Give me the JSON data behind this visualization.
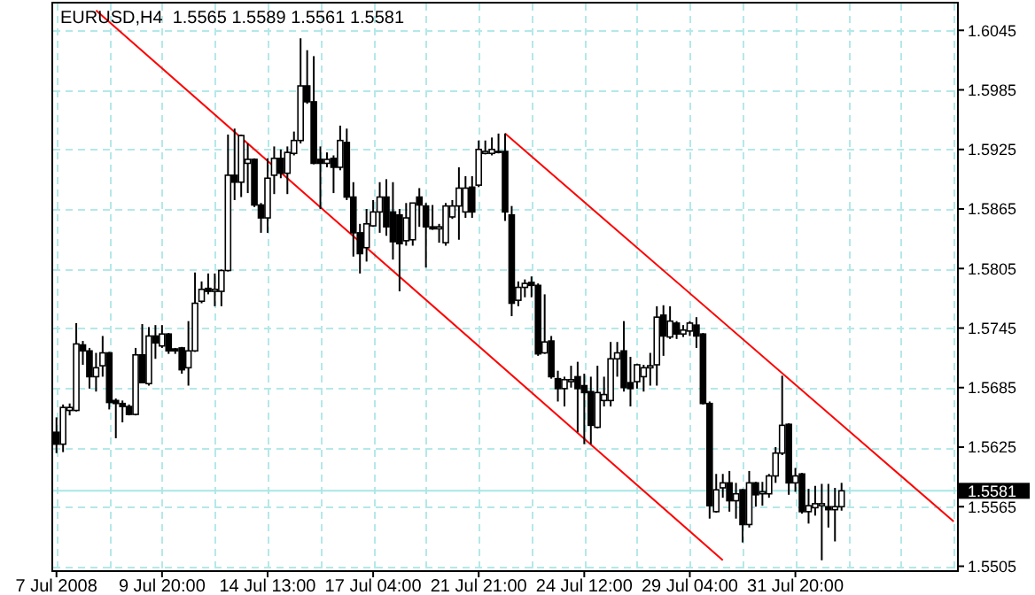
{
  "chart_data": {
    "type": "candlestick",
    "title": "EURUSD,H4  1.5565 1.5589 1.5561 1.5581",
    "categories": [
      "7 Jul 2008",
      null,
      null,
      null,
      null,
      null,
      null,
      null,
      null,
      null,
      null,
      null,
      null,
      null,
      null,
      null,
      "9 Jul 20:00",
      null,
      null,
      null,
      null,
      null,
      null,
      null,
      null,
      null,
      null,
      null,
      null,
      null,
      null,
      null,
      "14 Jul 13:00",
      null,
      null,
      null,
      null,
      null,
      null,
      null,
      null,
      null,
      null,
      null,
      null,
      null,
      null,
      null,
      "17 Jul 04:00",
      null,
      null,
      null,
      null,
      null,
      null,
      null,
      null,
      null,
      null,
      null,
      null,
      null,
      null,
      null,
      "21 Jul 21:00",
      null,
      null,
      null,
      null,
      null,
      null,
      null,
      null,
      null,
      null,
      null,
      null,
      null,
      null,
      null,
      "24 Jul 12:00",
      null,
      null,
      null,
      null,
      null,
      null,
      null,
      null,
      null,
      null,
      null,
      null,
      null,
      null,
      null,
      "29 Jul 04:00",
      null,
      null,
      null,
      null,
      null,
      null,
      null,
      null,
      null,
      null,
      null,
      null,
      null,
      null,
      null,
      "31 Jul 20:00",
      null,
      null,
      null,
      null,
      null,
      null,
      null,
      null,
      null,
      null,
      null,
      null,
      null,
      null,
      null,
      null,
      null,
      null,
      null,
      null,
      null,
      null,
      null,
      null
    ],
    "ohlc": [
      [
        1.564,
        1.5655,
        1.5619,
        1.5628
      ],
      [
        1.5628,
        1.5668,
        1.562,
        1.5665
      ],
      [
        1.5662,
        1.5669,
        1.5657,
        1.5665
      ],
      [
        1.5662,
        1.575,
        1.5661,
        1.5729
      ],
      [
        1.5728,
        1.5732,
        1.5708,
        1.5722
      ],
      [
        1.5722,
        1.5725,
        1.5684,
        1.5696
      ],
      [
        1.5696,
        1.572,
        1.5681,
        1.5705
      ],
      [
        1.5707,
        1.5737,
        1.5696,
        1.572
      ],
      [
        1.572,
        1.5721,
        1.5663,
        1.567
      ],
      [
        1.5672,
        1.5674,
        1.5634,
        1.5669
      ],
      [
        1.5669,
        1.5672,
        1.565,
        1.5666
      ],
      [
        1.5666,
        1.5668,
        1.5657,
        1.5658
      ],
      [
        1.5658,
        1.5725,
        1.5657,
        1.5718
      ],
      [
        1.5718,
        1.5749,
        1.569,
        1.569
      ],
      [
        1.5689,
        1.5746,
        1.5687,
        1.5737
      ],
      [
        1.5737,
        1.5748,
        1.5714,
        1.573
      ],
      [
        1.5727,
        1.5748,
        1.5725,
        1.5739
      ],
      [
        1.5739,
        1.574,
        1.5719,
        1.5722
      ],
      [
        1.5724,
        1.5725,
        1.5719,
        1.5722
      ],
      [
        1.5725,
        1.5726,
        1.5699,
        1.5703
      ],
      [
        1.5705,
        1.5752,
        1.5687,
        1.5722
      ],
      [
        1.5722,
        1.5801,
        1.5721,
        1.577
      ],
      [
        1.5772,
        1.5792,
        1.577,
        1.5784
      ],
      [
        1.5785,
        1.58,
        1.5779,
        1.5782
      ],
      [
        1.5782,
        1.58,
        1.5767,
        1.5784
      ],
      [
        1.5782,
        1.5804,
        1.5767,
        1.5803
      ],
      [
        1.5803,
        1.594,
        1.5802,
        1.5899
      ],
      [
        1.5899,
        1.5946,
        1.5874,
        1.5892
      ],
      [
        1.5892,
        1.594,
        1.5877,
        1.5939
      ],
      [
        1.5911,
        1.5931,
        1.5881,
        1.5915
      ],
      [
        1.5915,
        1.5916,
        1.5867,
        1.5869
      ],
      [
        1.5869,
        1.5871,
        1.5841,
        1.5856
      ],
      [
        1.5856,
        1.5916,
        1.5841,
        1.5896
      ],
      [
        1.5899,
        1.5928,
        1.588,
        1.5916
      ],
      [
        1.5916,
        1.5925,
        1.5896,
        1.5901
      ],
      [
        1.5901,
        1.5928,
        1.588,
        1.5922
      ],
      [
        1.5921,
        1.5943,
        1.5919,
        1.5934
      ],
      [
        1.5934,
        1.6037,
        1.5931,
        1.5989
      ],
      [
        1.5989,
        1.6025,
        1.5971,
        1.5973
      ],
      [
        1.5973,
        1.6019,
        1.591,
        1.5911
      ],
      [
        1.5915,
        1.5928,
        1.5865,
        1.5911
      ],
      [
        1.5911,
        1.5922,
        1.5907,
        1.5915
      ],
      [
        1.5916,
        1.5919,
        1.5881,
        1.5907
      ],
      [
        1.5907,
        1.5949,
        1.5904,
        1.5934
      ],
      [
        1.5932,
        1.5946,
        1.5874,
        1.5877
      ],
      [
        1.5877,
        1.5892,
        1.5817,
        1.5841
      ],
      [
        1.5841,
        1.585,
        1.58,
        1.582
      ],
      [
        1.5826,
        1.5865,
        1.5812,
        1.585
      ],
      [
        1.5848,
        1.5874,
        1.5847,
        1.5862
      ],
      [
        1.5862,
        1.5892,
        1.5841,
        1.5877
      ],
      [
        1.5877,
        1.5895,
        1.5838,
        1.5847
      ],
      [
        1.5862,
        1.5892,
        1.5814,
        1.5832
      ],
      [
        1.5859,
        1.5865,
        1.5782,
        1.583
      ],
      [
        1.5833,
        1.5871,
        1.5828,
        1.5856
      ],
      [
        1.5834,
        1.5871,
        1.5828,
        1.5871
      ],
      [
        1.5877,
        1.5886,
        1.5847,
        1.5869
      ],
      [
        1.5868,
        1.5871,
        1.5806,
        1.5847
      ],
      [
        1.5847,
        1.5869,
        1.5844,
        1.5845
      ],
      [
        1.5845,
        1.585,
        1.5831,
        1.5847
      ],
      [
        1.5831,
        1.5871,
        1.5828,
        1.5868
      ],
      [
        1.5857,
        1.5874,
        1.5855,
        1.5868
      ],
      [
        1.5868,
        1.5907,
        1.5834,
        1.5886
      ],
      [
        1.5862,
        1.5898,
        1.5856,
        1.5886
      ],
      [
        1.5887,
        1.5898,
        1.5856,
        1.5862
      ],
      [
        1.5889,
        1.5934,
        1.5887,
        1.5925
      ],
      [
        1.5921,
        1.5934,
        1.592,
        1.5923
      ],
      [
        1.5921,
        1.5937,
        1.5919,
        1.5925
      ],
      [
        1.5923,
        1.5941,
        1.5921,
        1.5922
      ],
      [
        1.5923,
        1.5941,
        1.5853,
        1.5862
      ],
      [
        1.5859,
        1.5868,
        1.5757,
        1.577
      ],
      [
        1.5773,
        1.5792,
        1.5767,
        1.5786
      ],
      [
        1.5786,
        1.5794,
        1.5776,
        1.579
      ],
      [
        1.5791,
        1.5797,
        1.5776,
        1.5788
      ],
      [
        1.5788,
        1.579,
        1.5717,
        1.5719
      ],
      [
        1.572,
        1.5779,
        1.5719,
        1.5731
      ],
      [
        1.5732,
        1.5737,
        1.5694,
        1.5696
      ],
      [
        1.5694,
        1.5702,
        1.5671,
        1.5684
      ],
      [
        1.5684,
        1.5696,
        1.5666,
        1.5693
      ],
      [
        1.5691,
        1.5707,
        1.5685,
        1.5693
      ],
      [
        1.5696,
        1.5711,
        1.564,
        1.5684
      ],
      [
        1.5687,
        1.5699,
        1.5628,
        1.568
      ],
      [
        1.5681,
        1.5696,
        1.5628,
        1.5647
      ],
      [
        1.5645,
        1.5707,
        1.5644,
        1.568
      ],
      [
        1.5672,
        1.5696,
        1.5666,
        1.5678
      ],
      [
        1.5672,
        1.5731,
        1.5666,
        1.5714
      ],
      [
        1.5714,
        1.5731,
        1.5696,
        1.572
      ],
      [
        1.5722,
        1.5752,
        1.5681,
        1.5685
      ],
      [
        1.569,
        1.5716,
        1.5666,
        1.5684
      ],
      [
        1.5691,
        1.5709,
        1.5684,
        1.5708
      ],
      [
        1.5696,
        1.5708,
        1.5681,
        1.5705
      ],
      [
        1.5705,
        1.572,
        1.5687,
        1.5707
      ],
      [
        1.5708,
        1.5767,
        1.5687,
        1.5756
      ],
      [
        1.5758,
        1.5768,
        1.5717,
        1.5737
      ],
      [
        1.5736,
        1.5767,
        1.5734,
        1.5752
      ],
      [
        1.575,
        1.5752,
        1.5734,
        1.5739
      ],
      [
        1.5739,
        1.5748,
        1.5736,
        1.5743
      ],
      [
        1.5742,
        1.5752,
        1.5737,
        1.575
      ],
      [
        1.5748,
        1.5756,
        1.5725,
        1.5737
      ],
      [
        1.5739,
        1.574,
        1.5668,
        1.5669
      ],
      [
        1.5669,
        1.5671,
        1.5553,
        1.5566
      ],
      [
        1.556,
        1.5598,
        1.5559,
        1.5582
      ],
      [
        1.5584,
        1.5598,
        1.5574,
        1.5589
      ],
      [
        1.5589,
        1.5601,
        1.556,
        1.5571
      ],
      [
        1.5571,
        1.5589,
        1.5553,
        1.5578
      ],
      [
        1.5582,
        1.5583,
        1.5529,
        1.5547
      ],
      [
        1.5547,
        1.5601,
        1.5544,
        1.5589
      ],
      [
        1.5589,
        1.559,
        1.5565,
        1.5577
      ],
      [
        1.5578,
        1.559,
        1.5566,
        1.558
      ],
      [
        1.5578,
        1.5598,
        1.5574,
        1.5596
      ],
      [
        1.5596,
        1.5625,
        1.5589,
        1.5619
      ],
      [
        1.5619,
        1.5697,
        1.5617,
        1.5647
      ],
      [
        1.5648,
        1.5649,
        1.5577,
        1.5589
      ],
      [
        1.5589,
        1.5604,
        1.558,
        1.5596
      ],
      [
        1.5598,
        1.5599,
        1.5558,
        1.556
      ],
      [
        1.556,
        1.5583,
        1.5548,
        1.5566
      ],
      [
        1.5564,
        1.5586,
        1.5556,
        1.5568
      ],
      [
        1.5566,
        1.5588,
        1.5511,
        1.5568
      ],
      [
        1.5565,
        1.5588,
        1.5544,
        1.5562
      ],
      [
        1.5562,
        1.5584,
        1.553,
        1.5565
      ],
      [
        1.5565,
        1.5589,
        1.5561,
        1.5581
      ],
      null,
      null,
      null,
      null,
      null,
      null,
      null,
      null,
      null,
      null,
      null,
      null,
      null,
      null,
      null,
      null,
      null
    ],
    "series": [
      {
        "type": "line",
        "color": "#ff0000",
        "values": [
          null,
          null,
          null,
          null,
          null,
          null,
          1.6065,
          null,
          null,
          null,
          null,
          null,
          null,
          null,
          null,
          null,
          null,
          null,
          null,
          null,
          null,
          null,
          null,
          null,
          null,
          null,
          null,
          null,
          null,
          null,
          null,
          null,
          null,
          null,
          null,
          null,
          null,
          null,
          null,
          null,
          null,
          null,
          null,
          null,
          null,
          null,
          null,
          null,
          null,
          null,
          null,
          null,
          null,
          null,
          null,
          null,
          null,
          null,
          null,
          null,
          null,
          null,
          null,
          null,
          null,
          null,
          null,
          null,
          null,
          null,
          null,
          null,
          null,
          null,
          null,
          null,
          null,
          null,
          null,
          null,
          null,
          null,
          null,
          null,
          null,
          null,
          null,
          null,
          null,
          null,
          null,
          null,
          null,
          null,
          null,
          null,
          null,
          null,
          null,
          null,
          null,
          1.5511,
          null,
          null,
          null,
          null,
          null,
          null,
          null,
          null,
          null,
          null,
          null,
          null,
          null,
          null,
          null,
          null,
          null,
          null,
          null,
          null,
          null,
          null,
          null,
          null,
          null,
          null,
          null,
          null,
          null,
          null,
          null,
          null,
          null,
          null,
          null
        ]
      },
      {
        "type": "line",
        "color": "#ff0000",
        "values": [
          null,
          null,
          null,
          null,
          null,
          null,
          null,
          null,
          null,
          null,
          null,
          null,
          null,
          null,
          null,
          null,
          null,
          null,
          null,
          null,
          null,
          null,
          null,
          null,
          null,
          null,
          null,
          null,
          null,
          null,
          null,
          null,
          null,
          null,
          null,
          null,
          null,
          null,
          null,
          null,
          null,
          null,
          null,
          null,
          null,
          null,
          null,
          null,
          null,
          null,
          null,
          null,
          null,
          null,
          null,
          null,
          null,
          null,
          null,
          null,
          null,
          null,
          null,
          null,
          null,
          null,
          null,
          null,
          1.5941,
          null,
          null,
          null,
          null,
          null,
          null,
          null,
          null,
          null,
          null,
          null,
          null,
          null,
          null,
          null,
          null,
          null,
          null,
          null,
          null,
          null,
          null,
          null,
          null,
          null,
          null,
          null,
          null,
          null,
          null,
          null,
          null,
          null,
          null,
          null,
          null,
          null,
          null,
          null,
          null,
          null,
          null,
          null,
          null,
          null,
          null,
          null,
          null,
          null,
          null,
          null,
          null,
          null,
          null,
          null,
          null,
          null,
          null,
          null,
          null,
          null,
          null,
          null,
          null,
          null,
          null,
          null,
          1.555
        ]
      }
    ],
    "ylim": [
      1.5501,
      1.6072
    ],
    "yticks": [
      1.5505,
      1.5565,
      1.5625,
      1.5685,
      1.5745,
      1.5805,
      1.5865,
      1.5925,
      1.5985,
      1.6045
    ],
    "ref_lines": [
      {
        "axis": "y",
        "value": 1.5581,
        "label": "1.5581",
        "color": "#a8e6e6"
      }
    ],
    "grid": true
  }
}
